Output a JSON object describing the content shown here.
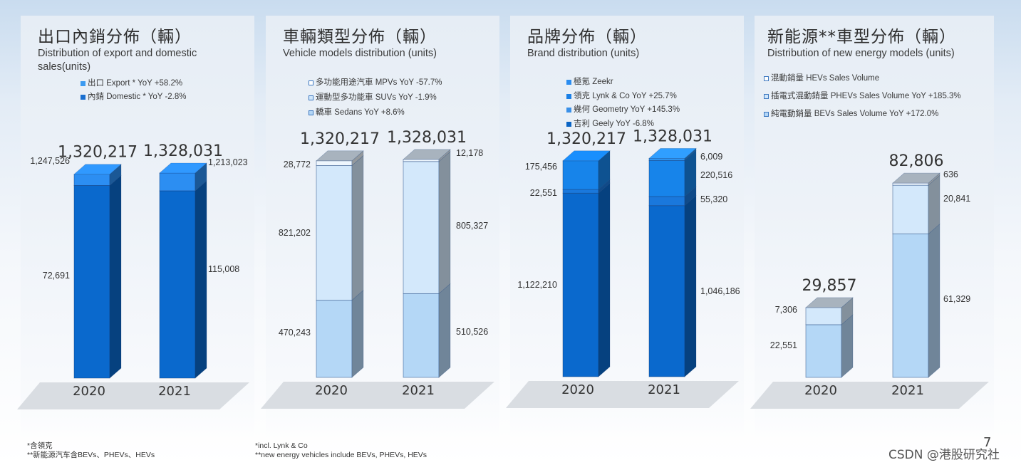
{
  "panels": [
    {
      "title": "出口內銷分佈（輛）",
      "subtitle": "Distribution of export and domestic sales(units)",
      "legend": [
        {
          "label": "出口 Export * YoY +58.2%",
          "color": "#3b9af0"
        },
        {
          "label": "內銷 Domestic  * YoY -2.8%",
          "color": "#1a6fd0"
        }
      ]
    },
    {
      "title": "車輛類型分佈（輛）",
      "subtitle": "Vehicle models distribution (units)",
      "legend": [
        {
          "label": "多功能用途汽車 MPVs YoY -57.7%",
          "color": "#ffffff"
        },
        {
          "label": "運動型多功能車 SUVs YoY -1.9%",
          "color": "#cfe6fb"
        },
        {
          "label": "轎車 Sedans YoY +8.6%",
          "color": "#b3d6f6"
        }
      ]
    },
    {
      "title": "品牌分佈（輛）",
      "subtitle": "Brand distribution (units)",
      "legend": [
        {
          "label": "極氪 Zeekr",
          "color": "#2b8df0"
        },
        {
          "label": "領克 Lynk & Co YoY +25.7%",
          "color": "#1a7fe6"
        },
        {
          "label": "幾何 Geometry YoY +145.3%",
          "color": "#3a90e8"
        },
        {
          "label": "吉利 Geely YoY -6.8%",
          "color": "#0a64c4"
        }
      ]
    },
    {
      "title": "新能源**車型分佈（輛）",
      "subtitle": "Distribution of new energy models (units)",
      "legend": [
        {
          "label": "混動銷量 HEVs Sales Volume",
          "color": "#ffffff"
        },
        {
          "label": "插電式混動銷量 PHEVs Sales Volume YoY +185.3%",
          "color": "#cfe6fb"
        },
        {
          "label": "純電動銷量 BEVs Sales Volume YoY +172.0%",
          "color": "#b3d6f6"
        }
      ]
    }
  ],
  "chart_data": [
    {
      "type": "bar",
      "stacked": true,
      "categories": [
        "2020",
        "2021"
      ],
      "totals": [
        "1,320,217",
        "1,328,031"
      ],
      "series": [
        {
          "name": "內銷 Domestic",
          "values": [
            1247526,
            1213023
          ],
          "labels": [
            "1,247,526",
            "1,213,023"
          ],
          "color": "#0a69cd"
        },
        {
          "name": "出口 Export",
          "values": [
            72691,
            115008
          ],
          "labels": [
            "72,691",
            "115,008"
          ],
          "color": "#2c8ef2"
        }
      ]
    },
    {
      "type": "bar",
      "stacked": true,
      "categories": [
        "2020",
        "2021"
      ],
      "totals": [
        "1,320,217",
        "1,328,031"
      ],
      "series": [
        {
          "name": "轎車 Sedans",
          "values": [
            470243,
            510526
          ],
          "labels": [
            "470,243",
            "510,526"
          ],
          "color": "#b4d7f6"
        },
        {
          "name": "運動型多功能車 SUVs",
          "values": [
            821202,
            805327
          ],
          "labels": [
            "821,202",
            "805,327"
          ],
          "color": "#d3e8fb"
        },
        {
          "name": "多功能用途汽車 MPVs",
          "values": [
            28772,
            12178
          ],
          "labels": [
            "28,772",
            "12,178"
          ],
          "color": "#eef6fd"
        }
      ]
    },
    {
      "type": "bar",
      "stacked": true,
      "categories": [
        "2020",
        "2021"
      ],
      "totals": [
        "1,320,217",
        "1,328,031"
      ],
      "series": [
        {
          "name": "吉利 Geely",
          "values": [
            1122210,
            1046186
          ],
          "labels": [
            "1,122,210",
            "1,046,186"
          ],
          "color": "#0a69cd"
        },
        {
          "name": "幾何 Geometry",
          "values": [
            22551,
            55320
          ],
          "labels": [
            "22,551",
            "55,320"
          ],
          "color": "#1a78dc"
        },
        {
          "name": "領克 Lynk & Co",
          "values": [
            175456,
            220516
          ],
          "labels": [
            "175,456",
            "220,516"
          ],
          "color": "#1784ea"
        },
        {
          "name": "極氪 Zeekr",
          "values": [
            0,
            6009
          ],
          "labels": [
            "",
            "6,009"
          ],
          "color": "#2c93f2"
        }
      ]
    },
    {
      "type": "bar",
      "stacked": true,
      "categories": [
        "2020",
        "2021"
      ],
      "totals": [
        "29,857",
        "82,806"
      ],
      "series": [
        {
          "name": "純電動銷量 BEVs",
          "values": [
            22551,
            61329
          ],
          "labels": [
            "22,551",
            "61,329"
          ],
          "color": "#b4d7f6"
        },
        {
          "name": "插電式混動銷量 PHEVs",
          "values": [
            7306,
            20841
          ],
          "labels": [
            "7,306",
            "20,841"
          ],
          "color": "#d3e8fb"
        },
        {
          "name": "混動銷量 HEVs",
          "values": [
            0,
            636
          ],
          "labels": [
            "",
            "636"
          ],
          "color": "#eef6fd"
        }
      ]
    }
  ],
  "footnotes": {
    "left": [
      "*含領克",
      "**新能源汽车含BEVs、PHEVs、HEVs"
    ],
    "right": [
      "*incl. Lynk & Co",
      "**new energy vehicles include BEVs, PHEVs, HEVs"
    ]
  },
  "page_number": "7",
  "watermark": "CSDN @港股研究社"
}
